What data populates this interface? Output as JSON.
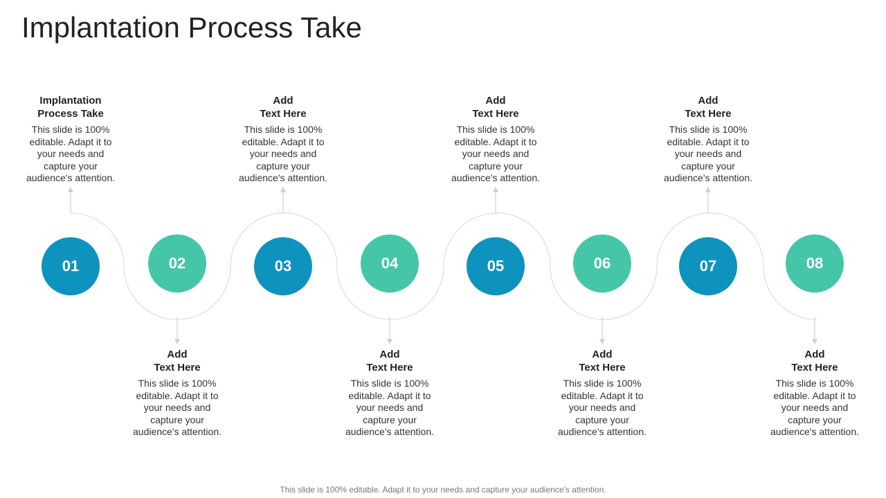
{
  "title": "Implantation Process Take",
  "colors": {
    "dark": "#0E93BE",
    "light": "#45C6A8",
    "line": "#D9D9D9"
  },
  "steps": [
    {
      "number": "01",
      "heading": "Implantation\nProcess Take",
      "text": "This slide is 100%\neditable. Adapt it to\nyour needs and\ncapture your\naudience's attention.",
      "color": "dark"
    },
    {
      "number": "02",
      "heading": "Add\nText Here",
      "text": "This slide is 100%\neditable. Adapt it to\nyour needs and\ncapture your\naudience's attention.",
      "color": "light"
    },
    {
      "number": "03",
      "heading": "Add\nText Here",
      "text": "This slide is 100%\neditable. Adapt it to\nyour needs and\ncapture your\naudience's attention.",
      "color": "dark"
    },
    {
      "number": "04",
      "heading": "Add\nText Here",
      "text": "This slide is 100%\neditable. Adapt it to\nyour needs and\ncapture your\naudience's attention.",
      "color": "light"
    },
    {
      "number": "05",
      "heading": "Add\nText Here",
      "text": "This slide is 100%\neditable. Adapt it to\nyour needs and\ncapture your\naudience's attention.",
      "color": "dark"
    },
    {
      "number": "06",
      "heading": "Add\nText Here",
      "text": "This slide is 100%\neditable. Adapt it to\nyour needs and\ncapture your\naudience's attention.",
      "color": "light"
    },
    {
      "number": "07",
      "heading": "Add\nText Here",
      "text": "This slide is 100%\neditable. Adapt it to\nyour needs and\ncapture your\naudience's attention.",
      "color": "dark"
    },
    {
      "number": "08",
      "heading": "Add\nText Here",
      "text": "This slide is 100%\neditable. Adapt it to\nyour needs and\ncapture your\naudience's attention.",
      "color": "light"
    }
  ],
  "footer": "This slide is 100% editable. Adapt it to your needs and capture your audience's attention."
}
